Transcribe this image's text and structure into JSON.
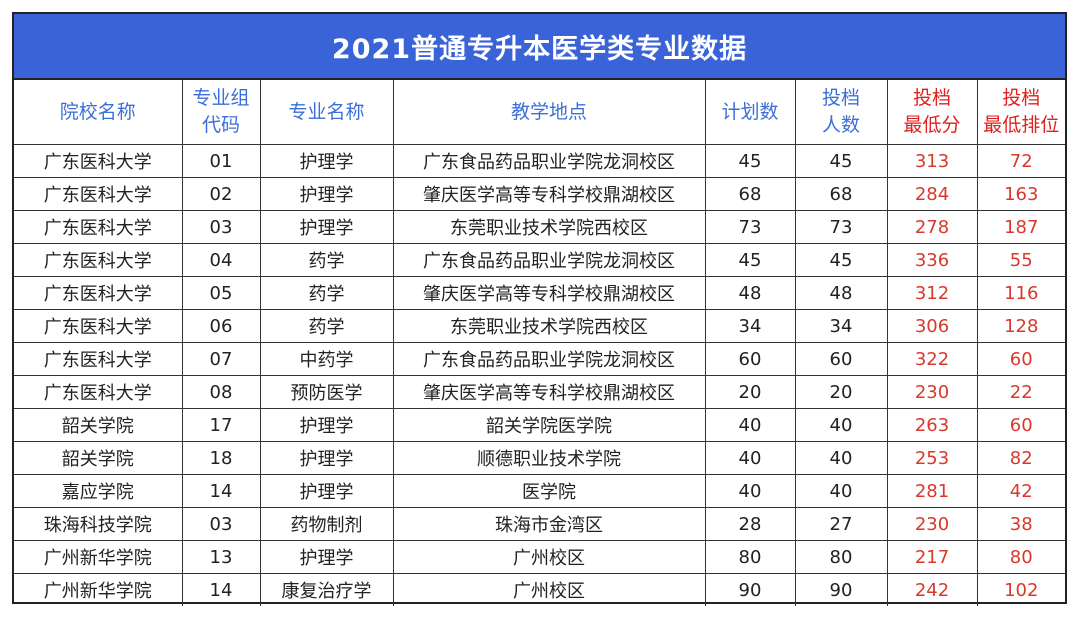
{
  "title": "2021普通专升本医学类专业数据",
  "headers": [
    {
      "lines": [
        "院校名称"
      ],
      "accent": false
    },
    {
      "lines": [
        "专业组",
        "代码"
      ],
      "accent": false
    },
    {
      "lines": [
        "专业名称"
      ],
      "accent": false
    },
    {
      "lines": [
        "教学地点"
      ],
      "accent": false
    },
    {
      "lines": [
        "计划数"
      ],
      "accent": false
    },
    {
      "lines": [
        "投档",
        "人数"
      ],
      "accent": false
    },
    {
      "lines": [
        "投档",
        "最低分"
      ],
      "accent": true
    },
    {
      "lines": [
        "投档",
        "最低排位"
      ],
      "accent": true
    }
  ],
  "rows": [
    [
      "广东医科大学",
      "01",
      "护理学",
      "广东食品药品职业学院龙洞校区",
      "45",
      "45",
      "313",
      "72"
    ],
    [
      "广东医科大学",
      "02",
      "护理学",
      "肇庆医学高等专科学校鼎湖校区",
      "68",
      "68",
      "284",
      "163"
    ],
    [
      "广东医科大学",
      "03",
      "护理学",
      "东莞职业技术学院西校区",
      "73",
      "73",
      "278",
      "187"
    ],
    [
      "广东医科大学",
      "04",
      "药学",
      "广东食品药品职业学院龙洞校区",
      "45",
      "45",
      "336",
      "55"
    ],
    [
      "广东医科大学",
      "05",
      "药学",
      "肇庆医学高等专科学校鼎湖校区",
      "48",
      "48",
      "312",
      "116"
    ],
    [
      "广东医科大学",
      "06",
      "药学",
      "东莞职业技术学院西校区",
      "34",
      "34",
      "306",
      "128"
    ],
    [
      "广东医科大学",
      "07",
      "中药学",
      "广东食品药品职业学院龙洞校区",
      "60",
      "60",
      "322",
      "60"
    ],
    [
      "广东医科大学",
      "08",
      "预防医学",
      "肇庆医学高等专科学校鼎湖校区",
      "20",
      "20",
      "230",
      "22"
    ],
    [
      "韶关学院",
      "17",
      "护理学",
      "韶关学院医学院",
      "40",
      "40",
      "263",
      "60"
    ],
    [
      "韶关学院",
      "18",
      "护理学",
      "顺德职业技术学院",
      "40",
      "40",
      "253",
      "82"
    ],
    [
      "嘉应学院",
      "14",
      "护理学",
      "医学院",
      "40",
      "40",
      "281",
      "42"
    ],
    [
      "珠海科技学院",
      "03",
      "药物制剂",
      "珠海市金湾区",
      "28",
      "27",
      "230",
      "38"
    ],
    [
      "广州新华学院",
      "13",
      "护理学",
      "广州校区",
      "80",
      "80",
      "217",
      "80"
    ],
    [
      "广州新华学院",
      "14",
      "康复治疗学",
      "广州校区",
      "90",
      "90",
      "242",
      "102"
    ]
  ],
  "colors": {
    "title_bg": "#3a63d8",
    "header_text": "#3b6fd9",
    "accent_text": "#e02020",
    "accent_cell": "#d9382c"
  }
}
